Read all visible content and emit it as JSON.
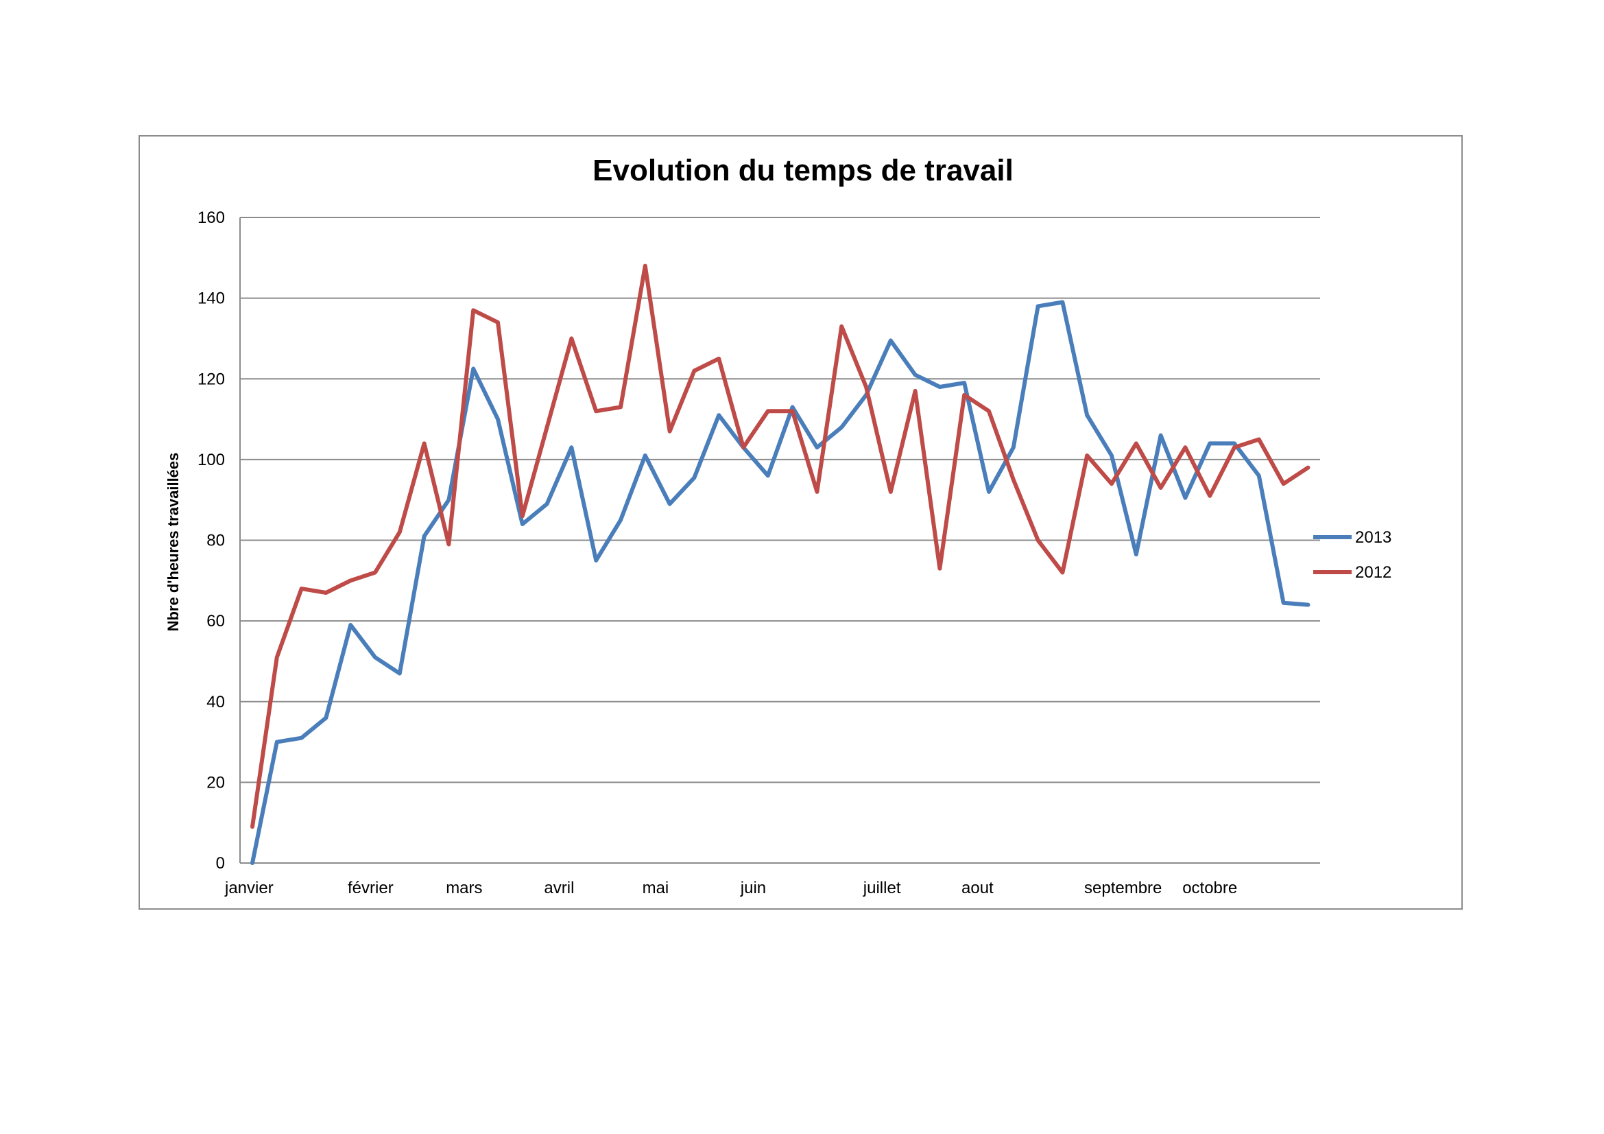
{
  "chart_data": {
    "type": "line",
    "title": "Evolution du temps de travail",
    "xlabel": "",
    "ylabel": "Nbre d'heures travaillées",
    "ylim": [
      0,
      160
    ],
    "yticks": [
      0,
      20,
      40,
      60,
      80,
      100,
      120,
      140,
      160
    ],
    "grid": true,
    "legend_position": "right",
    "month_labels": [
      {
        "label": "janvier",
        "index": 0
      },
      {
        "label": "février",
        "index": 5
      },
      {
        "label": "mars",
        "index": 9
      },
      {
        "label": "avril",
        "index": 13
      },
      {
        "label": "mai",
        "index": 17
      },
      {
        "label": "juin",
        "index": 21
      },
      {
        "label": "juillet",
        "index": 26
      },
      {
        "label": "aout",
        "index": 30
      },
      {
        "label": "septembre",
        "index": 35
      },
      {
        "label": "octobre",
        "index": 39
      }
    ],
    "num_points": 44,
    "series": [
      {
        "name": "2013",
        "color": "#4a7ebb",
        "values": [
          0,
          30,
          31,
          36,
          59,
          51,
          47,
          81,
          90,
          122.5,
          110,
          84,
          89,
          103,
          75,
          85,
          101,
          89,
          95.5,
          111,
          103,
          96,
          113,
          103,
          108,
          116,
          129.5,
          121,
          118,
          119,
          92,
          103,
          138,
          139,
          111,
          101,
          76.5,
          106,
          90.5,
          104,
          104,
          96,
          64.5,
          64
        ]
      },
      {
        "name": "2012",
        "color": "#be4b48",
        "values": [
          9,
          51,
          68,
          67,
          70,
          72,
          82,
          104,
          79,
          137,
          134,
          86,
          108,
          130,
          112,
          113,
          148,
          107,
          122,
          125,
          103,
          112,
          112,
          92,
          133,
          118,
          92,
          117,
          73,
          116,
          112,
          95,
          80,
          72,
          101,
          94,
          104,
          93,
          103,
          91,
          103,
          105,
          94,
          98
        ]
      }
    ]
  }
}
